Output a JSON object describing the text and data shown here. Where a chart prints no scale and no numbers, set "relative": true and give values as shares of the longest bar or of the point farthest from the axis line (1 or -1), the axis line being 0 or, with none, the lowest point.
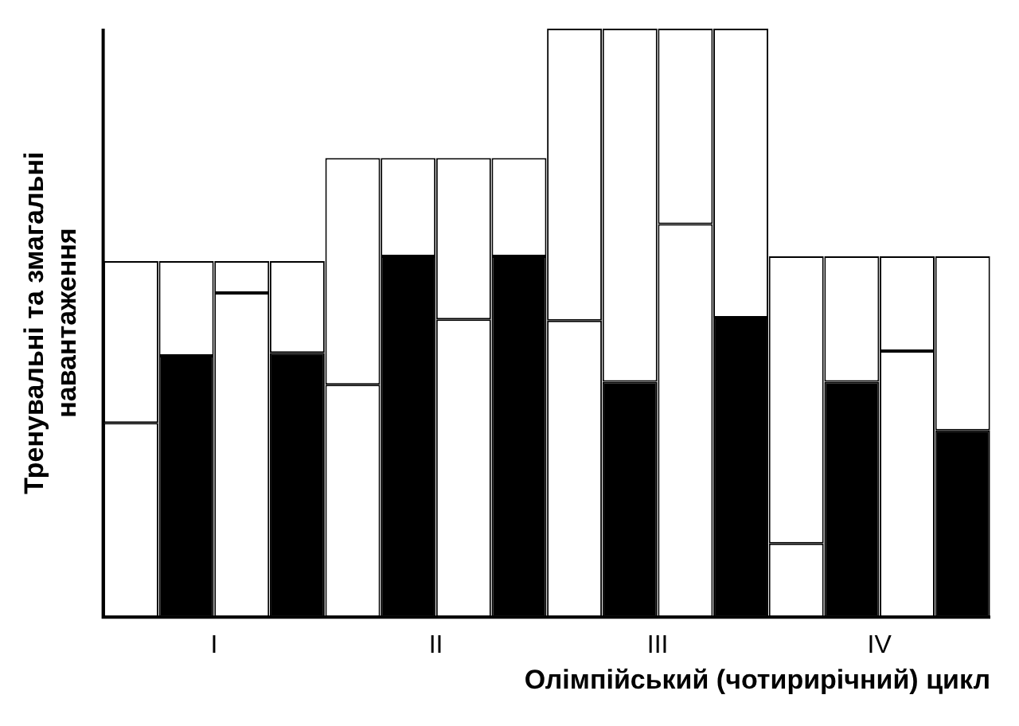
{
  "chart_data": {
    "type": "bar",
    "stacked": true,
    "relative": true,
    "grid": false,
    "legend": false,
    "xlabel": "Олімпійський (чотирирічний) цикл",
    "ylabel": "Тренувальні та змагальні навантаження",
    "categories": [
      null,
      null,
      null,
      null,
      null,
      null,
      null,
      null,
      null,
      null,
      null,
      null,
      null,
      null,
      null,
      null
    ],
    "annotations": [
      "I",
      "II",
      "III",
      "IV"
    ],
    "series": [
      {
        "colors": [
          "#ffffff",
          "#000000",
          "#ffffff",
          "#000000",
          "#ffffff",
          "#000000",
          "#ffffff",
          "#000000",
          "#ffffff",
          "#000000",
          "#ffffff",
          "#000000",
          "#ffffff",
          "#000000",
          "#ffffff",
          "#000000"
        ],
        "values": [
          0.33,
          0.444,
          0.551,
          0.449,
          0.395,
          0.613,
          0.506,
          0.613,
          0.504,
          0.4,
          0.668,
          0.509,
          0.125,
          0.4,
          0.452,
          0.317
        ]
      },
      {
        "color": "#ffffff",
        "values": [
          0.275,
          0.161,
          0.054,
          0.156,
          0.385,
          0.167,
          0.274,
          0.167,
          0.496,
          0.6,
          0.332,
          0.491,
          0.488,
          0.213,
          0.161,
          0.296
        ]
      }
    ]
  }
}
